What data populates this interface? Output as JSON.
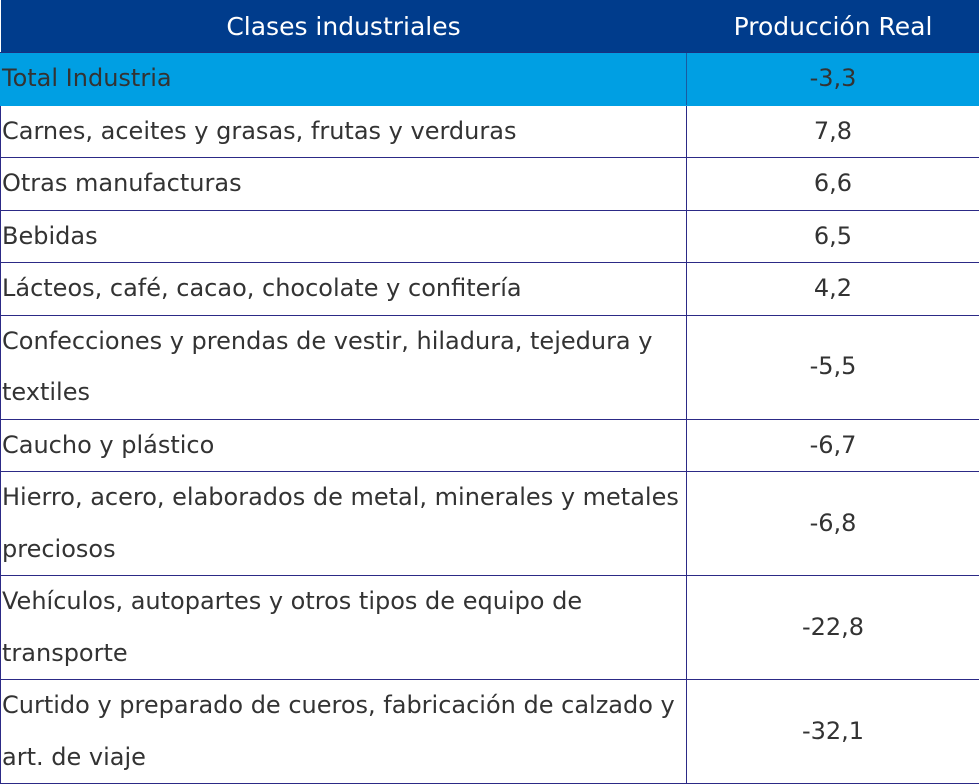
{
  "table": {
    "headers": {
      "category": "Clases industriales",
      "value": "Producción Real"
    },
    "total": {
      "label": "Total Industria",
      "value": "-3,3"
    },
    "rows": [
      {
        "label": "Carnes, aceites y grasas, frutas y verduras",
        "value": "7,8"
      },
      {
        "label": "Otras manufacturas",
        "value": "6,6"
      },
      {
        "label": "Bebidas",
        "value": "6,5"
      },
      {
        "label": "Lácteos, café, cacao, chocolate y confitería",
        "value": "4,2"
      },
      {
        "label": "Confecciones y prendas de vestir, hiladura, tejedura y textiles",
        "value": "-5,5"
      },
      {
        "label": "Caucho y plástico",
        "value": "-6,7"
      },
      {
        "label": "Hierro, acero, elaborados de metal, minerales y metales preciosos",
        "value": "-6,8"
      },
      {
        "label": "Vehículos, autopartes y otros tipos de equipo de transporte",
        "value": "-22,8"
      },
      {
        "label": "Curtido y preparado de cueros, fabricación de calzado y art. de viaje",
        "value": "-32,1"
      }
    ]
  },
  "colors": {
    "header_bg": "#003c8c",
    "total_bg": "#009fe3",
    "border": "#2c2a86"
  }
}
